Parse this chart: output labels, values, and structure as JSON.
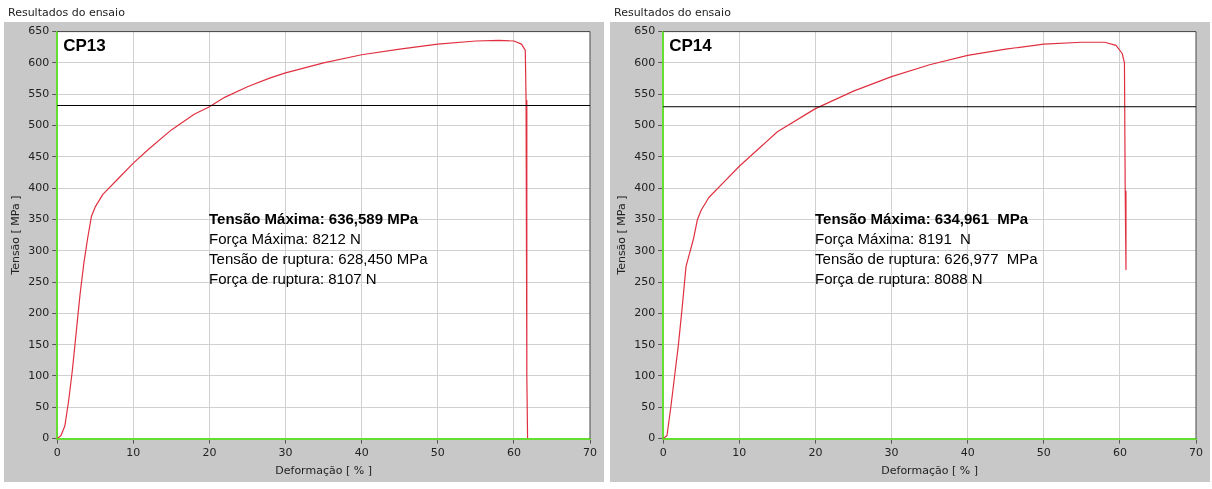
{
  "chart_data": [
    {
      "type": "line",
      "title": "Resultados do ensaio",
      "xlabel": "Deformação [ % ]",
      "ylabel": "Tensão [ MPa ]",
      "annotations": [
        "CP13",
        "Tensão Máxima: 636,589 MPa",
        "Força Máxima: 8212 N",
        "Tensão de ruptura: 628,450 MPa",
        "Força de ruptura: 8107 N"
      ],
      "series": [
        {
          "color": "#e03040",
          "x": [
            0,
            0.5,
            1,
            1.5,
            2,
            2.5,
            3,
            3.5,
            4,
            4.5,
            5,
            6,
            8,
            10,
            12,
            15,
            18,
            20,
            22,
            25,
            28,
            30,
            35,
            40,
            45,
            50,
            55,
            58,
            60,
            61,
            61.5,
            61.6,
            61.7,
            61.8
          ],
          "values": [
            0,
            5,
            20,
            60,
            110,
            170,
            230,
            280,
            320,
            355,
            370,
            390,
            415,
            440,
            462,
            493,
            518,
            530,
            545,
            562,
            576,
            584,
            600,
            613,
            622,
            630,
            635,
            636,
            635,
            630,
            620,
            540,
            100,
            0
          ]
        }
      ],
      "ref_lines": [
        {
          "axis": "y",
          "value": 532,
          "color": "#000000"
        }
      ],
      "xlim": [
        0,
        70
      ],
      "xticks": [
        0,
        10,
        20,
        30,
        40,
        50,
        60,
        70
      ],
      "ylim": [
        0,
        650
      ],
      "yticks": [
        0,
        50,
        100,
        150,
        200,
        250,
        300,
        350,
        400,
        450,
        500,
        550,
        600,
        650
      ],
      "grid": true,
      "legend": false,
      "marker": "none",
      "line_style": "solid"
    },
    {
      "type": "line",
      "title": "Resultados do ensaio",
      "xlabel": "Deformação [ % ]",
      "ylabel": "Tensão [ MPa ]",
      "annotations": [
        "CP14",
        "Tensão Máxima: 634,961  MPa",
        "Força Máxima: 8191  N",
        "Tensão de ruptura: 626,977  MPa",
        "Força de ruptura: 8088 N"
      ],
      "series": [
        {
          "color": "#e03040",
          "x": [
            0,
            0.5,
            1,
            1.5,
            2,
            2.5,
            3,
            4,
            4.5,
            5,
            6,
            8,
            10,
            15,
            20,
            25,
            30,
            35,
            40,
            45,
            50,
            55,
            58,
            59.5,
            60.3,
            60.6,
            60.7,
            60.8
          ],
          "values": [
            0,
            5,
            50,
            100,
            150,
            210,
            275,
            320,
            350,
            365,
            385,
            410,
            435,
            490,
            527,
            555,
            578,
            597,
            612,
            622,
            630,
            633,
            633,
            628,
            615,
            600,
            395,
            270
          ]
        }
      ],
      "ref_lines": [
        {
          "axis": "y",
          "value": 530,
          "color": "#000000"
        }
      ],
      "xlim": [
        0,
        70
      ],
      "xticks": [
        0,
        10,
        20,
        30,
        40,
        50,
        60,
        70
      ],
      "ylim": [
        0,
        650
      ],
      "yticks": [
        0,
        50,
        100,
        150,
        200,
        250,
        300,
        350,
        400,
        450,
        500,
        550,
        600,
        650
      ],
      "grid": true,
      "legend": false,
      "marker": "none",
      "line_style": "solid"
    }
  ]
}
